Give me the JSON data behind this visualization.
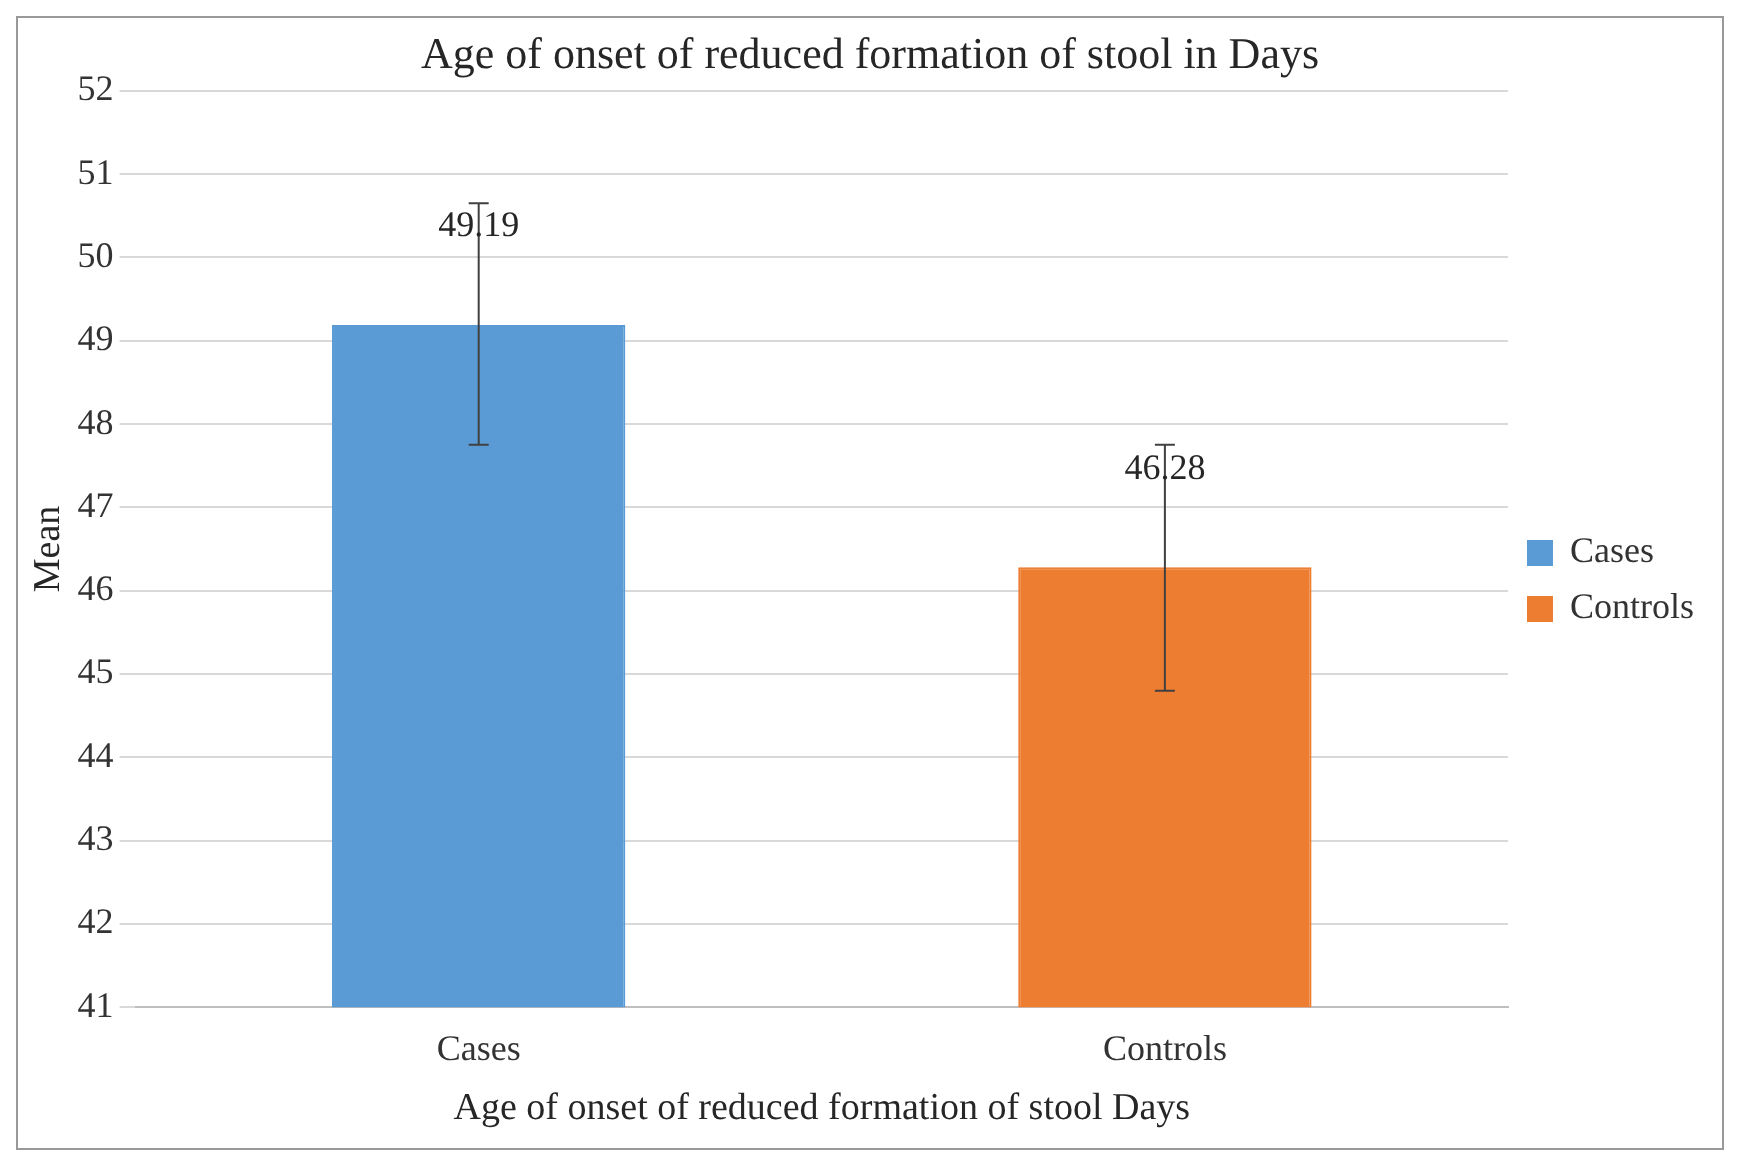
{
  "chart_data": {
    "type": "bar",
    "title": "Age of onset of reduced formation of stool in Days",
    "xlabel": "Age of onset of reduced formation of stool Days",
    "ylabel": "Mean",
    "categories": [
      "Cases",
      "Controls"
    ],
    "series": [
      {
        "name": "Cases",
        "color": "#5b9bd5",
        "values": [
          49.19,
          null
        ],
        "errors": [
          [
            47.75,
            50.65
          ],
          null
        ]
      },
      {
        "name": "Controls",
        "color": "#ed7d31",
        "values": [
          null,
          46.28
        ],
        "errors": [
          null,
          [
            44.8,
            47.75
          ]
        ]
      }
    ],
    "ylim": [
      41,
      52
    ],
    "yticks": [
      41,
      42,
      43,
      44,
      45,
      46,
      47,
      48,
      49,
      50,
      51,
      52
    ],
    "grid": "y",
    "legend": "right",
    "data_labels": true
  }
}
